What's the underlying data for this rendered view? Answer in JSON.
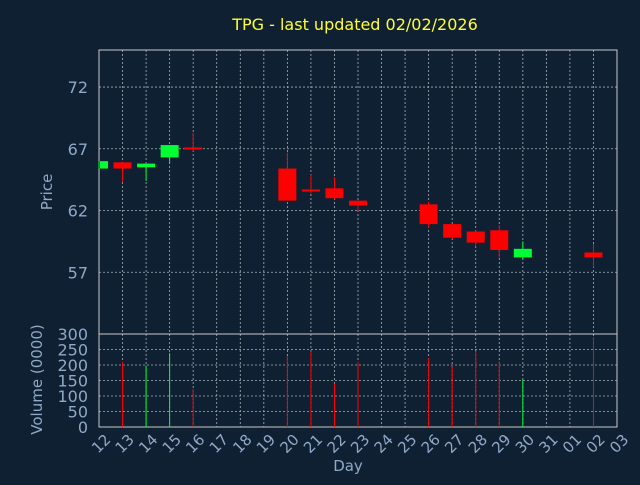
{
  "chart_data": [
    {
      "type": "candlestick",
      "title": "TPG - last updated 02/02/2026",
      "ylabel": "Price",
      "ylim": [
        52,
        75
      ],
      "yticks": [
        57,
        62,
        67,
        72
      ],
      "grid": true,
      "categories": [
        "12",
        "13",
        "14",
        "15",
        "16",
        "17",
        "18",
        "19",
        "20",
        "21",
        "22",
        "23",
        "24",
        "25",
        "26",
        "27",
        "28",
        "29",
        "30",
        "31",
        "01",
        "02",
        "03"
      ],
      "candles": [
        {
          "day": "12",
          "open": 65.4,
          "close": 66.0,
          "high": 66.0,
          "low": 65.4
        },
        {
          "day": "13",
          "open": 65.9,
          "close": 65.4,
          "high": 65.9,
          "low": 64.3
        },
        {
          "day": "14",
          "open": 65.5,
          "close": 65.8,
          "high": 65.8,
          "low": 64.4
        },
        {
          "day": "15",
          "open": 66.3,
          "close": 67.3,
          "high": 67.3,
          "low": 65.8
        },
        {
          "day": "16",
          "open": 67.1,
          "close": 67.0,
          "high": 68.3,
          "low": 66.8
        },
        {
          "day": "20",
          "open": 65.4,
          "close": 62.8,
          "high": 66.7,
          "low": 62.8
        },
        {
          "day": "21",
          "open": 63.7,
          "close": 63.6,
          "high": 64.9,
          "low": 63.4
        },
        {
          "day": "22",
          "open": 63.8,
          "close": 63.0,
          "high": 64.7,
          "low": 62.9
        },
        {
          "day": "23",
          "open": 62.8,
          "close": 62.4,
          "high": 62.8,
          "low": 62.0
        },
        {
          "day": "26",
          "open": 62.5,
          "close": 60.9,
          "high": 62.7,
          "low": 60.6
        },
        {
          "day": "27",
          "open": 60.9,
          "close": 59.8,
          "high": 60.9,
          "low": 59.7
        },
        {
          "day": "28",
          "open": 60.3,
          "close": 59.4,
          "high": 60.4,
          "low": 59.1
        },
        {
          "day": "29",
          "open": 60.4,
          "close": 58.8,
          "high": 60.8,
          "low": 58.2
        },
        {
          "day": "30",
          "open": 58.2,
          "close": 58.9,
          "high": 59.5,
          "low": 58.1
        },
        {
          "day": "02",
          "open": 58.6,
          "close": 58.2,
          "high": 59.3,
          "low": 57.4
        }
      ]
    },
    {
      "type": "bar",
      "xlabel": "Day",
      "ylabel": "Volume (0000)",
      "ylim": [
        0,
        300
      ],
      "yticks": [
        0,
        50,
        100,
        150,
        200,
        250,
        300
      ],
      "grid": true,
      "categories": [
        "12",
        "13",
        "14",
        "15",
        "16",
        "17",
        "18",
        "19",
        "20",
        "21",
        "22",
        "23",
        "24",
        "25",
        "26",
        "27",
        "28",
        "29",
        "30",
        "31",
        "01",
        "02",
        "03"
      ],
      "bars": [
        {
          "day": "13",
          "value": 210,
          "direction": "down"
        },
        {
          "day": "14",
          "value": 198,
          "direction": "up"
        },
        {
          "day": "15",
          "value": 238,
          "direction": "up"
        },
        {
          "day": "16",
          "value": 122,
          "direction": "down"
        },
        {
          "day": "20",
          "value": 228,
          "direction": "down"
        },
        {
          "day": "21",
          "value": 244,
          "direction": "down"
        },
        {
          "day": "22",
          "value": 140,
          "direction": "down"
        },
        {
          "day": "23",
          "value": 210,
          "direction": "down"
        },
        {
          "day": "26",
          "value": 222,
          "direction": "down"
        },
        {
          "day": "27",
          "value": 195,
          "direction": "down"
        },
        {
          "day": "28",
          "value": 245,
          "direction": "down"
        },
        {
          "day": "29",
          "value": 212,
          "direction": "down"
        },
        {
          "day": "30",
          "value": 152,
          "direction": "up"
        },
        {
          "day": "02",
          "value": 290,
          "direction": "down"
        }
      ]
    }
  ],
  "colors": {
    "background": "#0f2033",
    "title": "#ffff33",
    "axis_text": "#8fa9c6",
    "frame": "#c8c8c8",
    "grid": "#a8b0b8",
    "up": "#00ff33",
    "down": "#ff0000"
  }
}
